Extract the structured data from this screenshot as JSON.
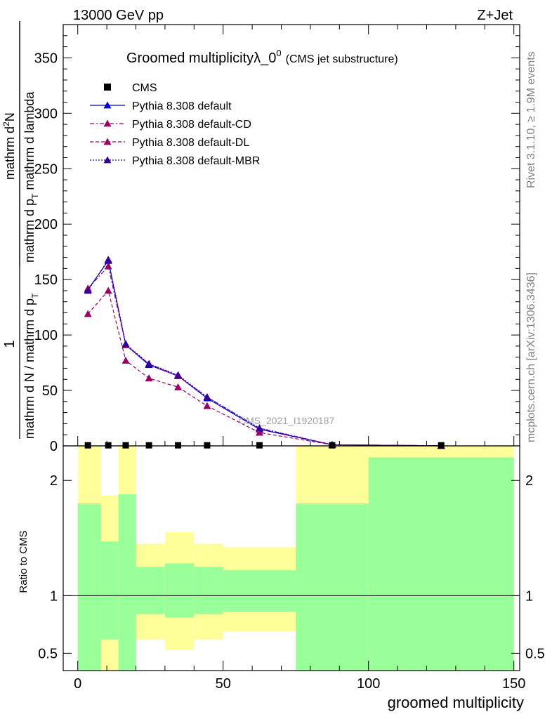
{
  "header": {
    "left": "13000 GeV pp",
    "right": "Z+Jet"
  },
  "side_labels": {
    "rivet": "Rivet 3.1.10, ≥ 1.9M events",
    "mcplots": "mcplots.cern.ch [arXiv:1306.3436]"
  },
  "watermark": "CMS_2021_I1920187",
  "chart_data": {
    "type": "line",
    "title_main": "Groomed multiplicityλ_0",
    "title_sup": "0",
    "title_sub": "(CMS jet substructure)",
    "xlabel": "groomed multiplicity",
    "ylabel_top_num": "1",
    "ylabel_top_den": "mathrm d N / mathrm d p",
    "ylabel_top_den_sub": "T",
    "ylabel_main_num": "mathrm d",
    "ylabel_main_num_sup": "2",
    "ylabel_main_num_tail": "N",
    "ylabel_main_den": "mathrm d p",
    "ylabel_main_den_sub": "T",
    "ylabel_main_den_tail": " mathrm d lambda",
    "ratio_ylabel": "Ratio to CMS",
    "xlim": [
      -5,
      152
    ],
    "ylim": [
      0,
      380
    ],
    "ratio_ylim": [
      0.35,
      2.3
    ],
    "x_ticks": [
      0,
      50,
      100,
      150
    ],
    "y_ticks": [
      0,
      50,
      100,
      150,
      200,
      250,
      300,
      350
    ],
    "ratio_ticks": [
      0.5,
      1,
      2
    ],
    "x": [
      3.5,
      10.5,
      16.5,
      24.5,
      34.5,
      44.5,
      62.5,
      87.5,
      125.0
    ],
    "cms": [
      0.5,
      0.5,
      0.5,
      0.5,
      0.5,
      0.5,
      0.5,
      0.5,
      0.5
    ],
    "series": [
      {
        "name": "Pythia 8.308 default",
        "color": "#0000cc",
        "dash": "",
        "values": [
          141,
          167,
          91,
          73,
          63,
          43,
          15,
          1,
          0.1
        ]
      },
      {
        "name": "Pythia 8.308 default-CD",
        "color": "#990066",
        "dash": "6,3,2,3",
        "values": [
          142,
          162,
          91,
          74,
          63,
          44,
          16,
          1,
          0.1
        ]
      },
      {
        "name": "Pythia 8.308 default-DL",
        "color": "#990066",
        "dash": "5,3",
        "values": [
          119,
          140,
          77,
          61,
          53,
          36,
          12,
          1,
          0.1
        ]
      },
      {
        "name": "Pythia 8.308 default-MBR",
        "color": "#330099",
        "dash": "2,2",
        "values": [
          140,
          168,
          92,
          74,
          64,
          44,
          16,
          1,
          0.1
        ]
      }
    ],
    "legend_data_name": "CMS",
    "ratio_bands": [
      {
        "x0": 0,
        "x1": 8,
        "g_lo": 0.35,
        "g_hi": 1.8,
        "y_lo": 0.35,
        "y_hi": 2.3
      },
      {
        "x0": 8,
        "x1": 14,
        "g_lo": 0.62,
        "g_hi": 1.47,
        "y_lo": 0.35,
        "y_hi": 1.87
      },
      {
        "x0": 14,
        "x1": 20,
        "g_lo": 0.35,
        "g_hi": 1.88,
        "y_lo": 0.35,
        "y_hi": 2.3
      },
      {
        "x0": 20,
        "x1": 30,
        "g_lo": 0.84,
        "g_hi": 1.25,
        "y_lo": 0.62,
        "y_hi": 1.45
      },
      {
        "x0": 30,
        "x1": 40,
        "g_lo": 0.81,
        "g_hi": 1.28,
        "y_lo": 0.53,
        "y_hi": 1.55
      },
      {
        "x0": 40,
        "x1": 50,
        "g_lo": 0.84,
        "g_hi": 1.25,
        "y_lo": 0.62,
        "y_hi": 1.45
      },
      {
        "x0": 50,
        "x1": 75,
        "g_lo": 0.86,
        "g_hi": 1.22,
        "y_lo": 0.69,
        "y_hi": 1.42
      },
      {
        "x0": 75,
        "x1": 100,
        "g_lo": 0.35,
        "g_hi": 1.8,
        "y_lo": 0.35,
        "y_hi": 2.3
      },
      {
        "x0": 100,
        "x1": 150,
        "g_lo": 0.35,
        "g_hi": 2.2,
        "y_lo": 0.35,
        "y_hi": 2.3
      }
    ],
    "colors": {
      "band_green": "#99ff99",
      "band_yellow": "#ffff99"
    }
  }
}
